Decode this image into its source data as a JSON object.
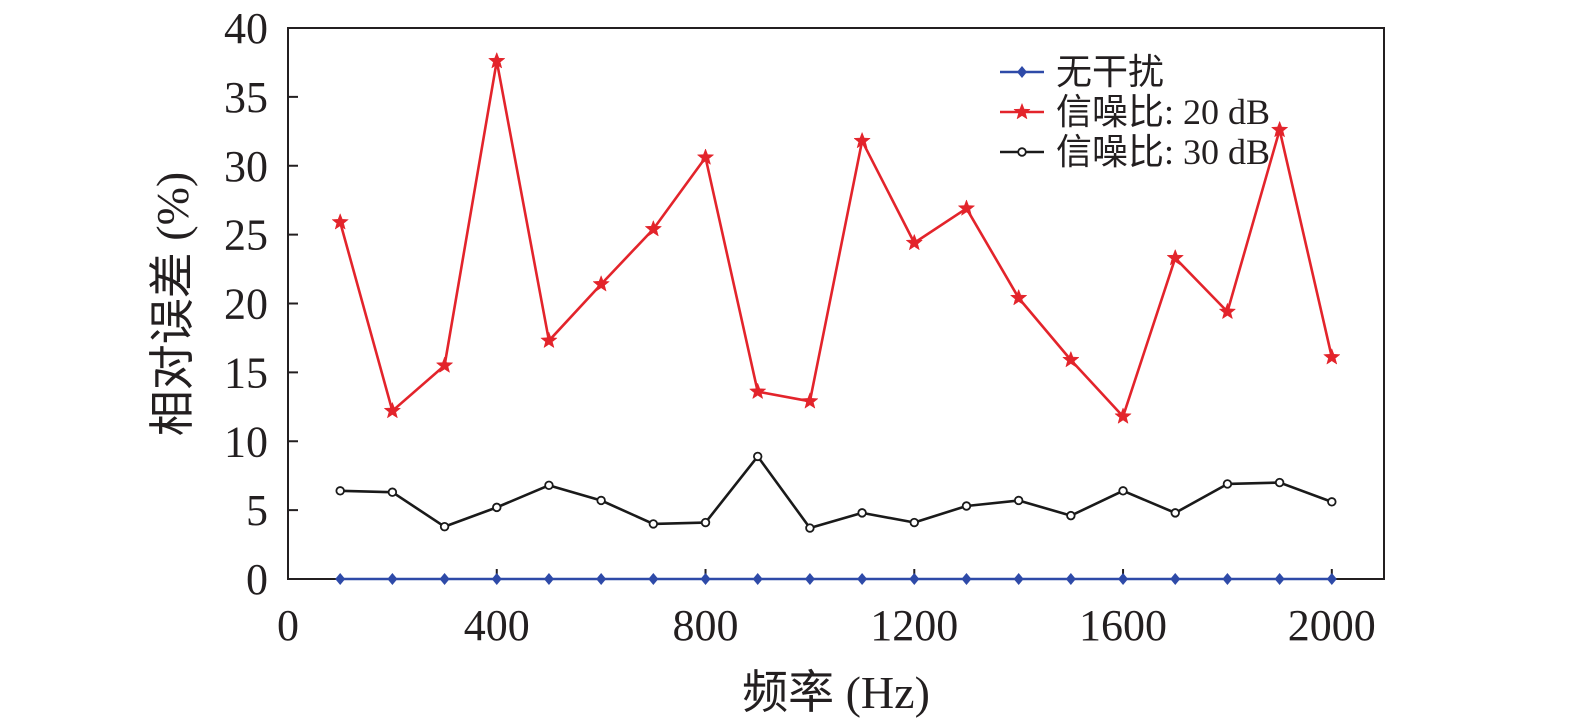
{
  "chart_data": {
    "type": "line",
    "xlabel": "频率 (Hz)",
    "ylabel": "相对误差 (%)",
    "xlim": [
      0,
      2100
    ],
    "ylim": [
      0,
      40
    ],
    "xticks": [
      0,
      400,
      800,
      1200,
      1600,
      2000
    ],
    "yticks": [
      0,
      5,
      10,
      15,
      20,
      25,
      30,
      35,
      40
    ],
    "grid": false,
    "legend_position": "top-right",
    "x": [
      100,
      200,
      300,
      400,
      500,
      600,
      700,
      800,
      900,
      1000,
      1100,
      1200,
      1300,
      1400,
      1500,
      1600,
      1700,
      1800,
      1900,
      2000
    ],
    "series": [
      {
        "name": "无干扰",
        "color": "#2e4aa8",
        "marker": "diamond",
        "values": [
          0,
          0,
          0,
          0,
          0,
          0,
          0,
          0,
          0,
          0,
          0,
          0,
          0,
          0,
          0,
          0,
          0,
          0,
          0,
          0
        ]
      },
      {
        "name": "信噪比: 20 dB",
        "color": "#e3242b",
        "marker": "star",
        "values": [
          25.9,
          12.2,
          15.5,
          37.6,
          17.3,
          21.4,
          25.4,
          30.6,
          13.6,
          12.9,
          31.8,
          24.4,
          26.9,
          20.4,
          15.9,
          11.8,
          23.3,
          19.4,
          32.6,
          16.1
        ]
      },
      {
        "name": "信噪比: 30 dB",
        "color": "#1a1a1a",
        "marker": "circle",
        "values": [
          6.4,
          6.3,
          3.8,
          5.2,
          6.8,
          5.7,
          4.0,
          4.1,
          8.9,
          3.7,
          4.8,
          4.1,
          5.3,
          5.7,
          4.6,
          6.4,
          4.8,
          6.9,
          7.0,
          5.6
        ]
      }
    ]
  }
}
